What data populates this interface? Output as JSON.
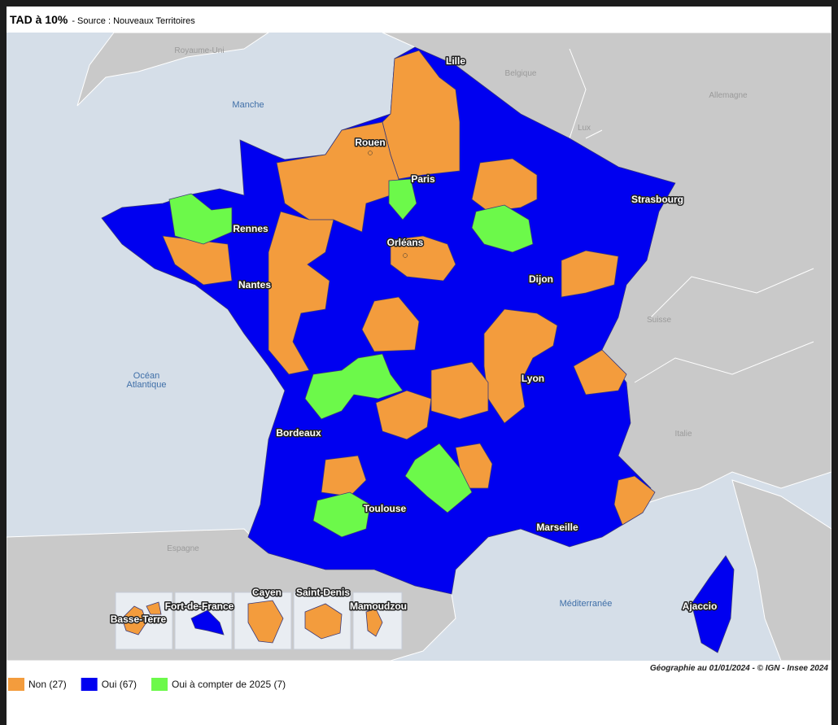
{
  "header": {
    "title": "TAD à 10%",
    "source": "- Source : Nouveaux Territoires"
  },
  "map": {
    "countries": [
      "Royaume-Uni",
      "Belgique",
      "Allemagne",
      "Lux",
      "Suisse",
      "Italie",
      "Espagne"
    ],
    "seas": [
      "Manche",
      "Océan",
      "Atlantique",
      "Méditerranée"
    ],
    "cities": [
      "Lille",
      "Rouen",
      "Paris",
      "Strasbourg",
      "Rennes",
      "Orléans",
      "Dijon",
      "Nantes",
      "Lyon",
      "Bordeaux",
      "Toulouse",
      "Marseille",
      "Ajaccio"
    ],
    "overseas": [
      "Basse-Terre",
      "Fort-de-France",
      "Cayen",
      "Saint-Denis",
      "Mamoudzou"
    ],
    "credit": "Géographie au 01/01/2024 - © IGN - Insee 2024"
  },
  "legend": [
    {
      "label": "Non (27)",
      "color": "#f39c3d"
    },
    {
      "label": "Oui (67)",
      "color": "#0000f0"
    },
    {
      "label": "Oui à compter de 2025 (7)",
      "color": "#6cf94a"
    }
  ]
}
